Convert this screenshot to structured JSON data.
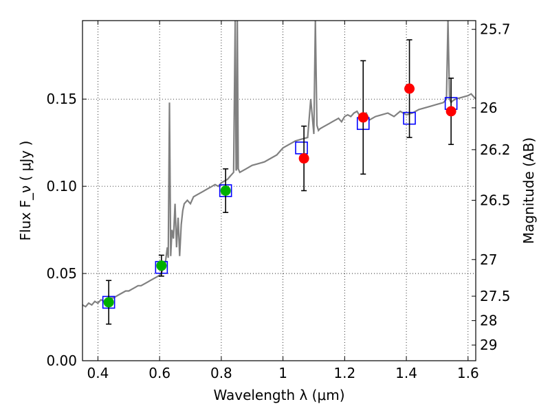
{
  "chart_data": {
    "type": "scatter",
    "xlabel": "Wavelength  λ (μm)",
    "ylabel": "Flux  F_ν  ( μJy )",
    "ylabel_right": "Magnitude (AB)",
    "xlim": [
      0.35,
      1.625
    ],
    "ylim": [
      0.0,
      0.195
    ],
    "grid": true,
    "x_ticks": [
      0.4,
      0.6,
      0.8,
      1.0,
      1.2,
      1.4,
      1.6
    ],
    "x_tick_labels": [
      "0.4",
      "0.6",
      "0.8",
      "1",
      "1.2",
      "1.4",
      "1.6"
    ],
    "y_ticks": [
      0.0,
      0.05,
      0.1,
      0.15
    ],
    "y_tick_labels": [
      "0.00",
      "0.05",
      "0.10",
      "0.15"
    ],
    "right_ticks": [
      {
        "label": "25.7",
        "flux": 0.19
      },
      {
        "label": "26",
        "flux": 0.145
      },
      {
        "label": "26.2",
        "flux": 0.121
      },
      {
        "label": "26.5",
        "flux": 0.092
      },
      {
        "label": "27",
        "flux": 0.058
      },
      {
        "label": "27.5",
        "flux": 0.037
      },
      {
        "label": "28",
        "flux": 0.023
      },
      {
        "label": "29",
        "flux": 0.009
      }
    ],
    "colors": {
      "model_spectrum": "#808080",
      "model_photometry": "#0000ff",
      "green_points": "#00b000",
      "red_points": "#ff0000",
      "errorbars": "#000000"
    },
    "series": [
      {
        "kind": "spectrum",
        "x": [
          0.35,
          0.36,
          0.37,
          0.38,
          0.39,
          0.4,
          0.41,
          0.42,
          0.43,
          0.44,
          0.45,
          0.46,
          0.47,
          0.48,
          0.49,
          0.5,
          0.51,
          0.52,
          0.53,
          0.54,
          0.55,
          0.56,
          0.57,
          0.58,
          0.59,
          0.6,
          0.605,
          0.61,
          0.615,
          0.62,
          0.625,
          0.628,
          0.632,
          0.636,
          0.64,
          0.645,
          0.65,
          0.655,
          0.66,
          0.665,
          0.67,
          0.675,
          0.68,
          0.69,
          0.7,
          0.71,
          0.72,
          0.73,
          0.74,
          0.75,
          0.76,
          0.77,
          0.78,
          0.79,
          0.8,
          0.81,
          0.82,
          0.83,
          0.84,
          0.845,
          0.848,
          0.85,
          0.852,
          0.855,
          0.86,
          0.87,
          0.88,
          0.89,
          0.9,
          0.92,
          0.94,
          0.96,
          0.98,
          1.0,
          1.02,
          1.04,
          1.06,
          1.08,
          1.09,
          1.1,
          1.105,
          1.11,
          1.115,
          1.12,
          1.13,
          1.14,
          1.15,
          1.16,
          1.17,
          1.18,
          1.19,
          1.2,
          1.21,
          1.22,
          1.23,
          1.24,
          1.25,
          1.26,
          1.27,
          1.28,
          1.3,
          1.32,
          1.34,
          1.36,
          1.38,
          1.4,
          1.42,
          1.44,
          1.46,
          1.48,
          1.5,
          1.52,
          1.53,
          1.535,
          1.54,
          1.545,
          1.55,
          1.56,
          1.58,
          1.6,
          1.61,
          1.625
        ],
        "y": [
          0.032,
          0.031,
          0.033,
          0.032,
          0.034,
          0.033,
          0.035,
          0.034,
          0.035,
          0.036,
          0.036,
          0.037,
          0.038,
          0.039,
          0.04,
          0.04,
          0.041,
          0.042,
          0.043,
          0.043,
          0.044,
          0.045,
          0.046,
          0.047,
          0.048,
          0.049,
          0.05,
          0.052,
          0.053,
          0.058,
          0.065,
          0.059,
          0.148,
          0.06,
          0.075,
          0.07,
          0.09,
          0.065,
          0.082,
          0.06,
          0.078,
          0.086,
          0.09,
          0.092,
          0.09,
          0.094,
          0.095,
          0.096,
          0.097,
          0.098,
          0.099,
          0.1,
          0.101,
          0.1,
          0.102,
          0.103,
          0.104,
          0.106,
          0.108,
          0.195,
          0.109,
          0.11,
          0.195,
          0.11,
          0.108,
          0.109,
          0.11,
          0.111,
          0.112,
          0.113,
          0.114,
          0.116,
          0.118,
          0.122,
          0.124,
          0.126,
          0.127,
          0.128,
          0.15,
          0.13,
          0.195,
          0.135,
          0.132,
          0.133,
          0.134,
          0.135,
          0.136,
          0.137,
          0.138,
          0.139,
          0.137,
          0.14,
          0.141,
          0.14,
          0.142,
          0.143,
          0.14,
          0.141,
          0.142,
          0.138,
          0.14,
          0.141,
          0.142,
          0.14,
          0.143,
          0.141,
          0.142,
          0.144,
          0.145,
          0.146,
          0.147,
          0.148,
          0.15,
          0.195,
          0.15,
          0.148,
          0.149,
          0.15,
          0.151,
          0.152,
          0.153,
          0.15
        ]
      },
      {
        "kind": "model_photometry",
        "x": [
          0.435,
          0.606,
          0.814,
          1.06,
          1.26,
          1.41,
          1.545
        ],
        "y": [
          0.0335,
          0.0535,
          0.0975,
          0.122,
          0.136,
          0.139,
          0.1475
        ]
      },
      {
        "kind": "observed_green",
        "x": [
          0.435,
          0.606,
          0.814
        ],
        "y": [
          0.0335,
          0.0545,
          0.0975
        ],
        "err": [
          0.0125,
          0.006,
          0.0125
        ]
      },
      {
        "kind": "observed_red",
        "x": [
          1.068,
          1.26,
          1.41,
          1.545
        ],
        "y": [
          0.116,
          0.1395,
          0.156,
          0.143
        ],
        "err": [
          0.0185,
          0.0325,
          0.028,
          0.019
        ]
      }
    ]
  }
}
